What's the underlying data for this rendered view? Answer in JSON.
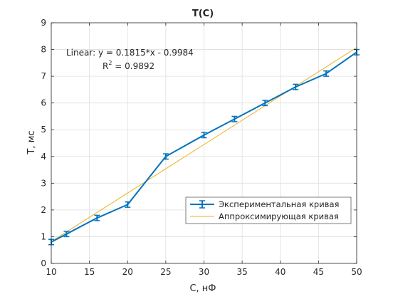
{
  "chart_data": {
    "type": "line",
    "title": "T(C)",
    "xlabel": "C, нФ",
    "ylabel": "T, мс",
    "xlim": [
      10,
      50
    ],
    "ylim": [
      0,
      9
    ],
    "xticks": [
      10,
      15,
      20,
      25,
      30,
      35,
      40,
      45,
      50
    ],
    "yticks": [
      0,
      1,
      2,
      3,
      4,
      5,
      6,
      7,
      8,
      9
    ],
    "grid": true,
    "legend_position": "bottom-right",
    "series": [
      {
        "name": "Экспериментальная кривая",
        "color": "#0072bd",
        "style": "line-with-errorbars",
        "x": [
          10,
          12,
          16,
          20,
          25,
          30,
          34,
          38,
          42,
          46,
          50
        ],
        "y": [
          0.8,
          1.1,
          1.7,
          2.2,
          4.0,
          4.8,
          5.4,
          6.0,
          6.6,
          7.1,
          7.9
        ],
        "err": [
          0.1,
          0.1,
          0.1,
          0.1,
          0.1,
          0.1,
          0.1,
          0.1,
          0.1,
          0.1,
          0.1
        ]
      },
      {
        "name": "Аппроксимирующая кривая",
        "color": "#edb120",
        "style": "line",
        "x": [
          10,
          50
        ],
        "y": [
          0.8166,
          8.0766
        ]
      }
    ],
    "annotations": {
      "line1": "Linear:  y = 0.1815*x - 0.9984",
      "r2_label": "R",
      "r2_sup": "2",
      "r2_value": " = 0.9892"
    }
  }
}
